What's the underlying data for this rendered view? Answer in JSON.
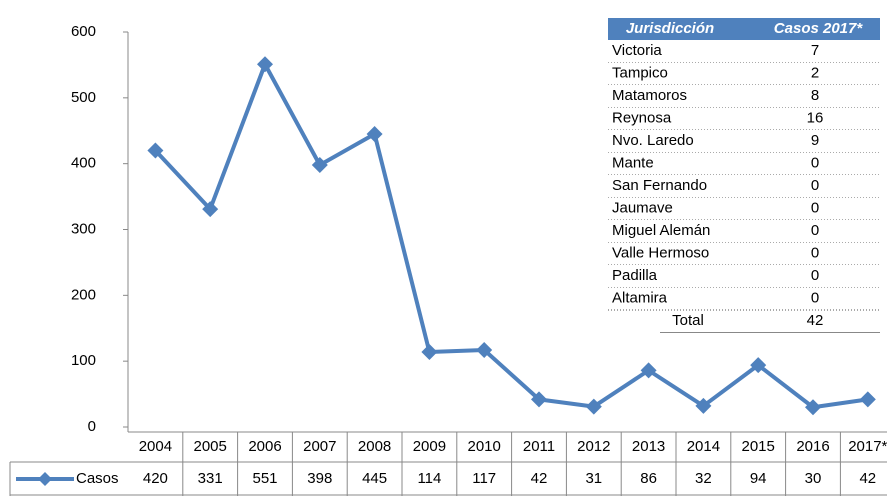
{
  "chart_data": {
    "type": "line",
    "categories": [
      "2004",
      "2005",
      "2006",
      "2007",
      "2008",
      "2009",
      "2010",
      "2011",
      "2012",
      "2013",
      "2014",
      "2015",
      "2016",
      "2017*"
    ],
    "series": [
      {
        "name": "Casos",
        "color": "#4f81bd",
        "values": [
          420,
          331,
          551,
          398,
          445,
          114,
          117,
          42,
          31,
          86,
          32,
          94,
          30,
          42
        ]
      }
    ],
    "ylim": [
      0,
      600
    ],
    "yticks": [
      0,
      100,
      200,
      300,
      400,
      500,
      600
    ],
    "grid": false,
    "table": {
      "header": [
        "Jurisdicción",
        "Casos 2017*"
      ],
      "rows": [
        [
          "Victoria",
          7
        ],
        [
          "Tampico",
          2
        ],
        [
          "Matamoros",
          8
        ],
        [
          "Reynosa",
          16
        ],
        [
          "Nvo. Laredo",
          9
        ],
        [
          "Mante",
          0
        ],
        [
          "San Fernando",
          0
        ],
        [
          "Jaumave",
          0
        ],
        [
          "Miguel Alemán",
          0
        ],
        [
          "Valle Hermoso",
          0
        ],
        [
          "Padilla",
          0
        ],
        [
          "Altamira",
          0
        ]
      ],
      "total": [
        "Total",
        42
      ]
    }
  }
}
